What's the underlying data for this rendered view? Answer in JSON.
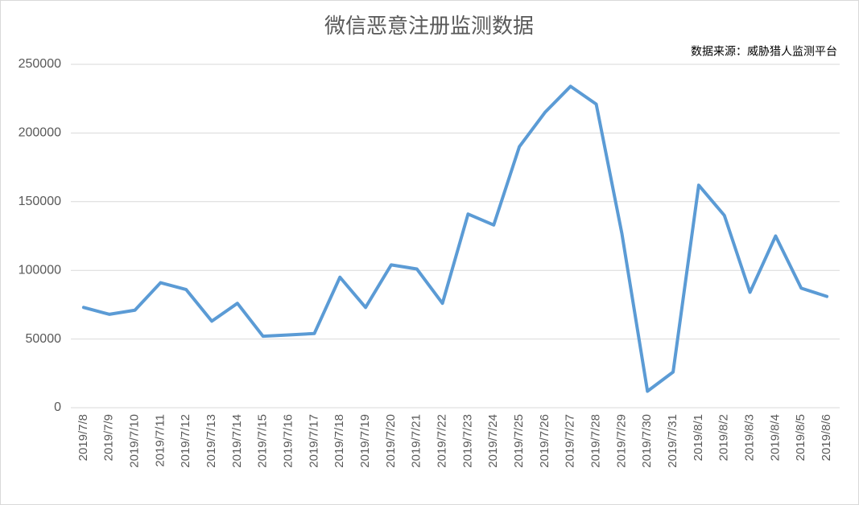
{
  "chart_data": {
    "type": "line",
    "title": "微信恶意注册监测数据",
    "annotation": "数据来源：威胁猎人监测平台",
    "categories": [
      "2019/7/8",
      "2019/7/9",
      "2019/7/10",
      "2019/7/11",
      "2019/7/12",
      "2019/7/13",
      "2019/7/14",
      "2019/7/15",
      "2019/7/16",
      "2019/7/17",
      "2019/7/18",
      "2019/7/19",
      "2019/7/20",
      "2019/7/21",
      "2019/7/22",
      "2019/7/23",
      "2019/7/24",
      "2019/7/25",
      "2019/7/26",
      "2019/7/27",
      "2019/7/28",
      "2019/7/29",
      "2019/7/30",
      "2019/7/31",
      "2019/8/1",
      "2019/8/2",
      "2019/8/3",
      "2019/8/4",
      "2019/8/5",
      "2019/8/6"
    ],
    "values": [
      73000,
      68000,
      71000,
      91000,
      86000,
      63000,
      76000,
      52000,
      53000,
      54000,
      95000,
      73000,
      104000,
      101000,
      76000,
      141000,
      133000,
      190000,
      215000,
      234000,
      221000,
      127000,
      12000,
      26000,
      162000,
      140000,
      84000,
      125000,
      87000,
      81000
    ],
    "color": "#5b9bd5",
    "ylim": [
      0,
      250000
    ],
    "yticks": [
      0,
      50000,
      100000,
      150000,
      200000,
      250000
    ],
    "grid": true
  }
}
